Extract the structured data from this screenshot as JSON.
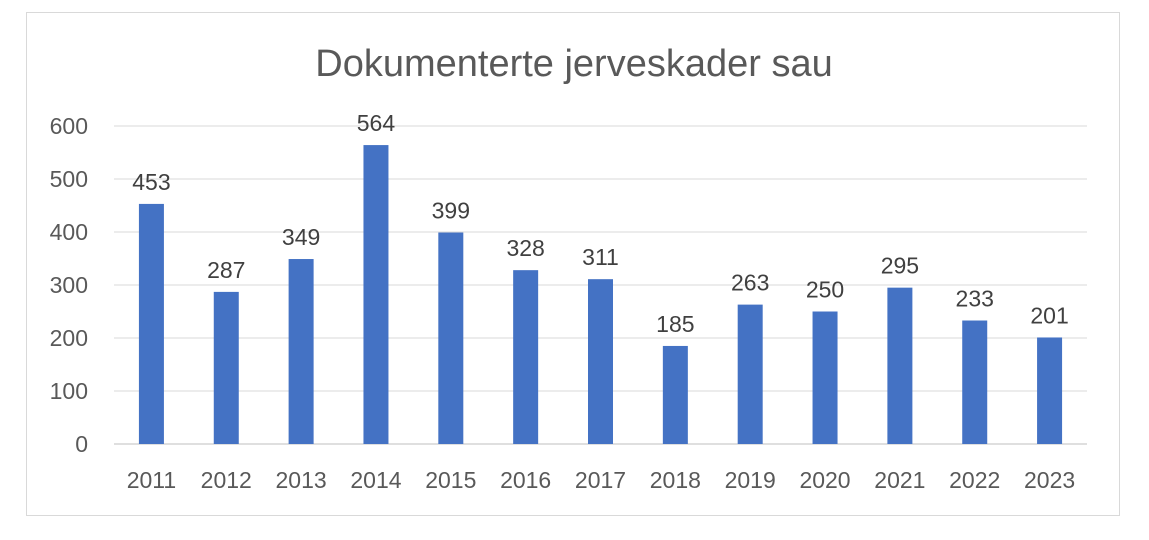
{
  "chart_data": {
    "type": "bar",
    "title": "Dokumenterte jerveskader sau",
    "categories": [
      "2011",
      "2012",
      "2013",
      "2014",
      "2015",
      "2016",
      "2017",
      "2018",
      "2019",
      "2020",
      "2021",
      "2022",
      "2023"
    ],
    "values": [
      453,
      287,
      349,
      564,
      399,
      328,
      311,
      185,
      263,
      250,
      295,
      233,
      201
    ],
    "xlabel": "",
    "ylabel": "",
    "ylim": [
      0,
      600
    ],
    "yticks": [
      0,
      100,
      200,
      300,
      400,
      500,
      600
    ],
    "grid": true,
    "legend": "none",
    "bar_color": "#4472C4",
    "data_labels": true
  }
}
